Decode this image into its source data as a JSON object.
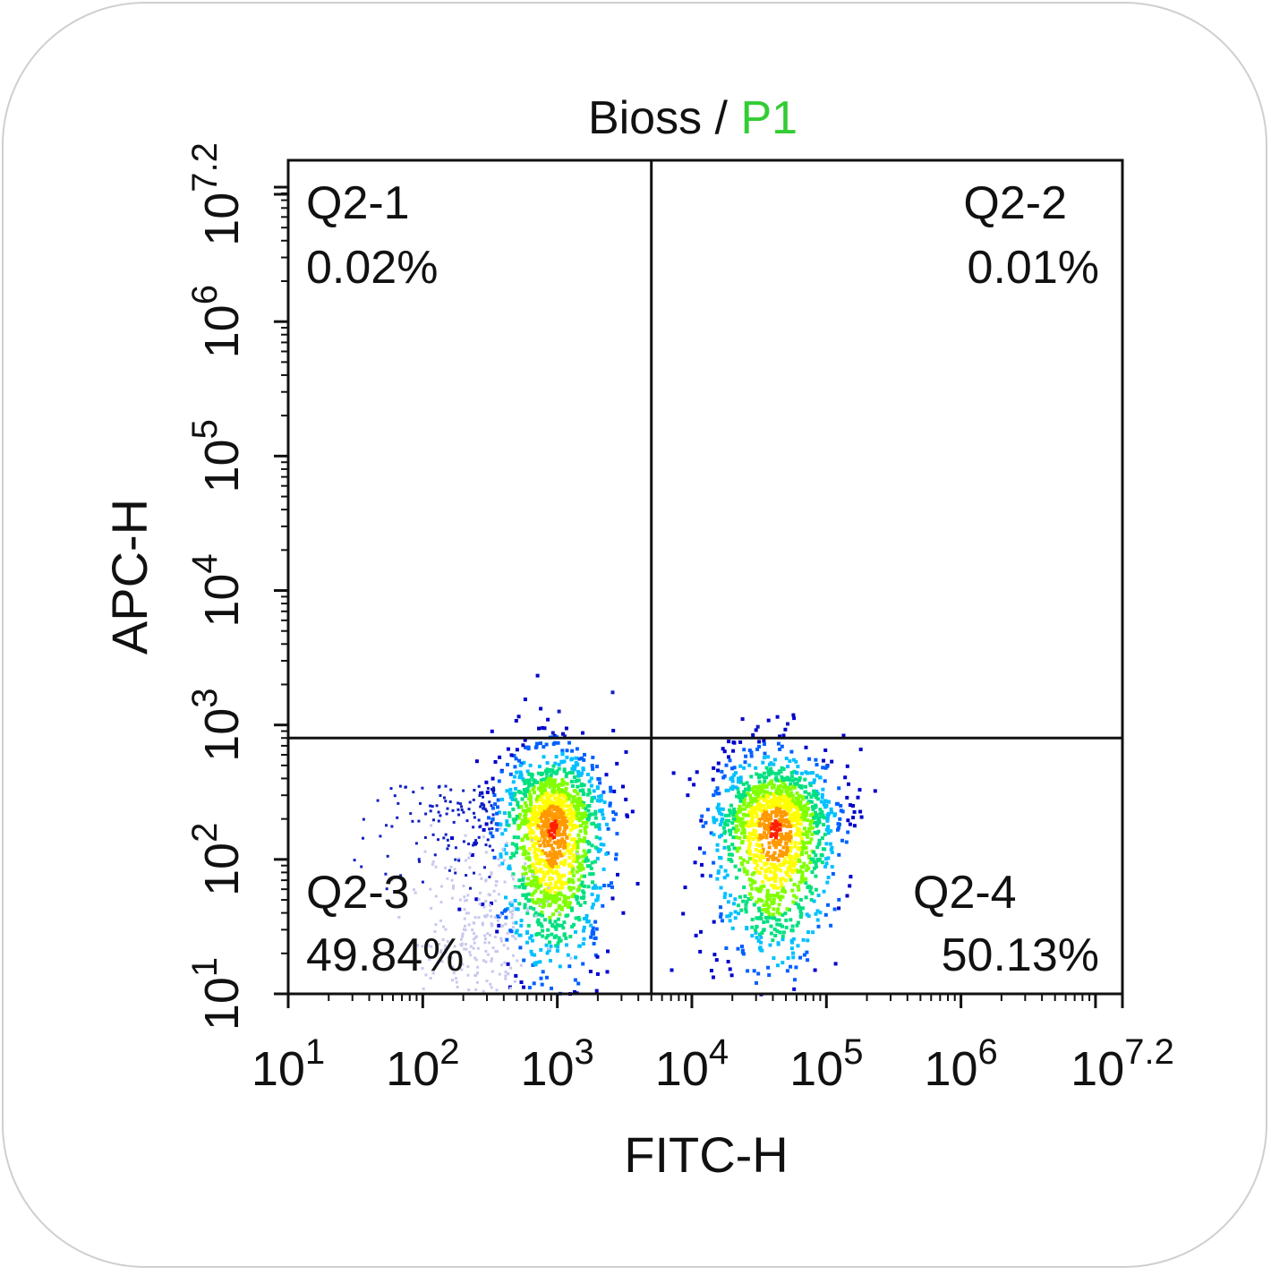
{
  "chart_data": {
    "type": "scatter",
    "title": {
      "sample": "Bioss",
      "separator": " / ",
      "gate": "P1"
    },
    "xlabel": "FITC-H",
    "ylabel": "APC-H",
    "xscale": "log",
    "yscale": "log",
    "xlim": [
      10,
      15848932
    ],
    "ylim": [
      10,
      15848932
    ],
    "x_ticks": [
      {
        "base": "10",
        "exp": "1",
        "value": 10
      },
      {
        "base": "10",
        "exp": "2",
        "value": 100
      },
      {
        "base": "10",
        "exp": "3",
        "value": 1000
      },
      {
        "base": "10",
        "exp": "4",
        "value": 10000
      },
      {
        "base": "10",
        "exp": "5",
        "value": 100000
      },
      {
        "base": "10",
        "exp": "6",
        "value": 1000000
      },
      {
        "base": "10",
        "exp": "7.2",
        "value": 15848932
      }
    ],
    "y_ticks": [
      {
        "base": "10",
        "exp": "1",
        "value": 10
      },
      {
        "base": "10",
        "exp": "2",
        "value": 100
      },
      {
        "base": "10",
        "exp": "3",
        "value": 1000
      },
      {
        "base": "10",
        "exp": "4",
        "value": 10000
      },
      {
        "base": "10",
        "exp": "5",
        "value": 100000
      },
      {
        "base": "10",
        "exp": "6",
        "value": 1000000
      },
      {
        "base": "10",
        "exp": "7.2",
        "value": 15848932
      }
    ],
    "gates": {
      "x_threshold": 5000,
      "y_threshold": 800
    },
    "quadrants": [
      {
        "name": "Q2-1",
        "percent": "0.02%",
        "position": "top-left"
      },
      {
        "name": "Q2-2",
        "percent": "0.01%",
        "position": "top-right"
      },
      {
        "name": "Q2-3",
        "percent": "49.84%",
        "position": "bottom-left"
      },
      {
        "name": "Q2-4",
        "percent": "50.13%",
        "position": "bottom-right"
      }
    ],
    "populations": [
      {
        "name": "Q2-3",
        "center_x": 900,
        "center_y": 180,
        "events_percent": 49.84
      },
      {
        "name": "Q2-4",
        "center_x": 40000,
        "center_y": 180,
        "events_percent": 50.13
      }
    ],
    "density_colors": [
      "#0000cc",
      "#0060ff",
      "#00c0ff",
      "#00e080",
      "#80ff00",
      "#ffff00",
      "#ff9900",
      "#ff2000"
    ],
    "title_gate_color": "#33cc33",
    "axis_color": "#111111"
  }
}
